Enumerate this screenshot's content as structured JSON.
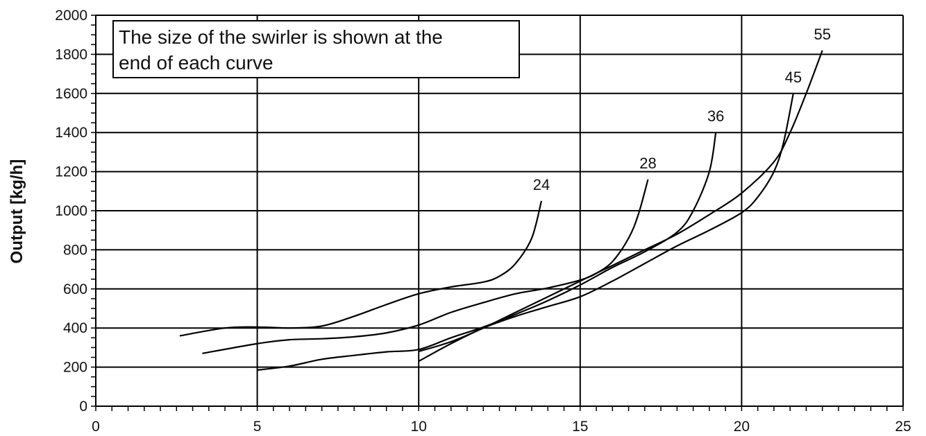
{
  "chart_data": {
    "type": "line",
    "title": "",
    "xlabel": "",
    "ylabel": "Output [kg/h]",
    "xlim": [
      0,
      25
    ],
    "ylim": [
      0,
      2000
    ],
    "xticks": [
      0,
      5,
      10,
      15,
      20,
      25
    ],
    "yticks": [
      0,
      200,
      400,
      600,
      800,
      1000,
      1200,
      1400,
      1600,
      1800,
      2000
    ],
    "grid": true,
    "annotation": [
      "The size of the swirler is shown at the",
      "end of each curve"
    ],
    "series": [
      {
        "name": "24",
        "points": [
          [
            2.6,
            360
          ],
          [
            4,
            400
          ],
          [
            5,
            405
          ],
          [
            6,
            400
          ],
          [
            7,
            410
          ],
          [
            8,
            460
          ],
          [
            9,
            520
          ],
          [
            10,
            575
          ],
          [
            11,
            610
          ],
          [
            12,
            635
          ],
          [
            12.5,
            665
          ],
          [
            13,
            730
          ],
          [
            13.5,
            860
          ],
          [
            13.8,
            1050
          ]
        ]
      },
      {
        "name": "28",
        "points": [
          [
            3.3,
            270
          ],
          [
            5,
            320
          ],
          [
            6,
            340
          ],
          [
            7,
            345
          ],
          [
            8,
            355
          ],
          [
            9,
            375
          ],
          [
            10,
            415
          ],
          [
            11,
            480
          ],
          [
            12,
            530
          ],
          [
            13,
            575
          ],
          [
            14,
            605
          ],
          [
            15,
            645
          ],
          [
            15.5,
            680
          ],
          [
            16,
            740
          ],
          [
            16.5,
            860
          ],
          [
            16.8,
            980
          ],
          [
            17.1,
            1160
          ]
        ]
      },
      {
        "name": "36",
        "points": [
          [
            5,
            185
          ],
          [
            6,
            205
          ],
          [
            7,
            240
          ],
          [
            8,
            260
          ],
          [
            9,
            278
          ],
          [
            10,
            290
          ],
          [
            11,
            350
          ],
          [
            12,
            405
          ],
          [
            13,
            470
          ],
          [
            14,
            540
          ],
          [
            15,
            620
          ],
          [
            16,
            710
          ],
          [
            17,
            790
          ],
          [
            18,
            890
          ],
          [
            18.5,
            1000
          ],
          [
            19,
            1200
          ],
          [
            19.2,
            1400
          ]
        ]
      },
      {
        "name": "45",
        "points": [
          [
            10,
            230
          ],
          [
            11,
            320
          ],
          [
            12,
            400
          ],
          [
            13,
            460
          ],
          [
            14,
            510
          ],
          [
            15,
            560
          ],
          [
            16,
            640
          ],
          [
            17,
            730
          ],
          [
            18,
            820
          ],
          [
            19,
            900
          ],
          [
            20,
            990
          ],
          [
            20.5,
            1070
          ],
          [
            21,
            1200
          ],
          [
            21.3,
            1350
          ],
          [
            21.6,
            1600
          ]
        ]
      },
      {
        "name": "55",
        "points": [
          [
            10,
            280
          ],
          [
            11,
            330
          ],
          [
            12,
            400
          ],
          [
            13,
            480
          ],
          [
            14,
            560
          ],
          [
            15,
            640
          ],
          [
            16,
            720
          ],
          [
            17,
            800
          ],
          [
            18,
            880
          ],
          [
            19,
            980
          ],
          [
            20,
            1090
          ],
          [
            21,
            1250
          ],
          [
            21.5,
            1400
          ],
          [
            22,
            1600
          ],
          [
            22.5,
            1820
          ]
        ]
      }
    ]
  }
}
